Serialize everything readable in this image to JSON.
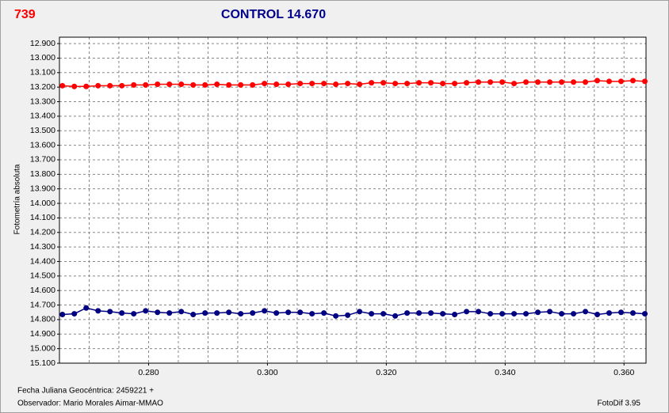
{
  "chart_data": {
    "type": "line",
    "corner_label": "739",
    "title": "CONTROL 14.670",
    "y_label": "Fotometría absoluta",
    "footer_left": [
      "Fecha Juliana Geocéntrica: 2459221 +",
      "Observador: Mario Morales Aimar-MMAO"
    ],
    "footer_right": "FotoDif 3.95",
    "x": [
      0.2655,
      0.2675,
      0.2695,
      0.2715,
      0.2735,
      0.2755,
      0.2775,
      0.2795,
      0.2815,
      0.2835,
      0.2855,
      0.2875,
      0.2895,
      0.2915,
      0.2935,
      0.2955,
      0.2975,
      0.2995,
      0.3015,
      0.3035,
      0.3055,
      0.3075,
      0.3095,
      0.3115,
      0.3135,
      0.3155,
      0.3175,
      0.3195,
      0.3215,
      0.3235,
      0.3255,
      0.3275,
      0.3295,
      0.3315,
      0.3335,
      0.3355,
      0.3375,
      0.3395,
      0.3415,
      0.3435,
      0.3455,
      0.3475,
      0.3495,
      0.3515,
      0.3535,
      0.3555,
      0.3575,
      0.3595,
      0.3615,
      0.3635
    ],
    "series": [
      {
        "color": "#ff0000",
        "values": [
          13.19,
          13.195,
          13.195,
          13.19,
          13.19,
          13.19,
          13.185,
          13.185,
          13.18,
          13.18,
          13.18,
          13.185,
          13.185,
          13.18,
          13.185,
          13.185,
          13.185,
          13.175,
          13.18,
          13.18,
          13.175,
          13.175,
          13.175,
          13.18,
          13.175,
          13.18,
          13.17,
          13.17,
          13.175,
          13.175,
          13.17,
          13.17,
          13.175,
          13.175,
          13.17,
          13.165,
          13.165,
          13.165,
          13.175,
          13.165,
          13.165,
          13.165,
          13.165,
          13.165,
          13.165,
          13.155,
          13.16,
          13.16,
          13.155,
          13.16
        ]
      },
      {
        "color": "#000080",
        "values": [
          14.765,
          14.76,
          14.72,
          14.74,
          14.745,
          14.755,
          14.76,
          14.74,
          14.75,
          14.755,
          14.745,
          14.765,
          14.755,
          14.755,
          14.75,
          14.76,
          14.755,
          14.74,
          14.755,
          14.75,
          14.75,
          14.76,
          14.755,
          14.775,
          14.77,
          14.745,
          14.76,
          14.76,
          14.775,
          14.755,
          14.755,
          14.755,
          14.76,
          14.765,
          14.745,
          14.745,
          14.76,
          14.76,
          14.76,
          14.76,
          14.75,
          14.745,
          14.76,
          14.76,
          14.745,
          14.765,
          14.755,
          14.75,
          14.755,
          14.76
        ]
      }
    ],
    "xlim": [
      0.265,
      0.3637
    ],
    "xticks": [
      {
        "value": 0.28,
        "label": "0.280"
      },
      {
        "value": 0.3,
        "label": "0.300"
      },
      {
        "value": 0.32,
        "label": "0.320"
      },
      {
        "value": 0.34,
        "label": "0.340"
      },
      {
        "value": 0.36,
        "label": "0.360"
      }
    ],
    "x_minor_grid": [
      0.27,
      0.275,
      0.285,
      0.29,
      0.295,
      0.305,
      0.31,
      0.315,
      0.325,
      0.33,
      0.335,
      0.345,
      0.35,
      0.355
    ],
    "ylim": [
      12.856,
      15.1
    ],
    "y_inverted": true,
    "yticks": [
      {
        "value": 12.9,
        "label": "12.900"
      },
      {
        "value": 13.0,
        "label": "13.000"
      },
      {
        "value": 13.1,
        "label": "13.100"
      },
      {
        "value": 13.2,
        "label": "13.200"
      },
      {
        "value": 13.3,
        "label": "13.300"
      },
      {
        "value": 13.4,
        "label": "13.400"
      },
      {
        "value": 13.5,
        "label": "13.500"
      },
      {
        "value": 13.6,
        "label": "13.600"
      },
      {
        "value": 13.7,
        "label": "13.700"
      },
      {
        "value": 13.8,
        "label": "13.800"
      },
      {
        "value": 13.9,
        "label": "13.900"
      },
      {
        "value": 14.0,
        "label": "14.000"
      },
      {
        "value": 14.1,
        "label": "14.100"
      },
      {
        "value": 14.2,
        "label": "14.200"
      },
      {
        "value": 14.3,
        "label": "14.300"
      },
      {
        "value": 14.4,
        "label": "14.400"
      },
      {
        "value": 14.5,
        "label": "14.500"
      },
      {
        "value": 14.6,
        "label": "14.600"
      },
      {
        "value": 14.7,
        "label": "14.700"
      },
      {
        "value": 14.8,
        "label": "14.800"
      },
      {
        "value": 14.9,
        "label": "14.900"
      },
      {
        "value": 15.0,
        "label": "15.000"
      },
      {
        "value": 15.1,
        "label": "15.100"
      }
    ],
    "grid": true
  }
}
